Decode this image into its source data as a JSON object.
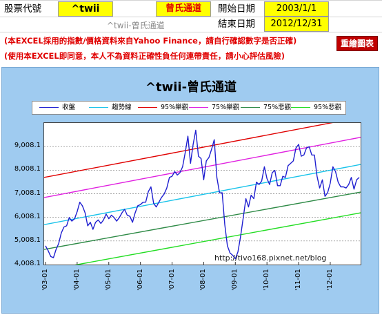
{
  "sheet": {
    "stock_code_label": "股票代號",
    "stock_code_value": "^twii",
    "method_label": "曾氏通道",
    "start_label": "開始日期",
    "start_value": "2003/1/1",
    "end_label": "結束日期",
    "end_value": "2012/12/31",
    "subtitle": "^twii-曾氏通道",
    "disclaimer1": "(本EXCEL採用的指數/價格資料來自Yahoo Finance，請自行確認數字是否正確)",
    "disclaimer2": "(使用本EXCEL即同意，本人不為資料正確性負任何連帶責任，請小心評估風險)",
    "redraw_button": "重繪圖表",
    "colors": {
      "highlight": "#ffff00",
      "chart_bg": "#9fcbf0",
      "accent_red": "#e00000"
    }
  },
  "chart_data": {
    "type": "line",
    "title": "^twii-曾氏通道",
    "watermark": "http://tivo168.pixnet.net/blog",
    "ylim": [
      4008.1,
      10008.1
    ],
    "yticks": [
      "4,008.1",
      "5,008.1",
      "6,008.1",
      "7,008.1",
      "8,008.1",
      "9,008.1"
    ],
    "xticks": [
      "'03-01",
      "'04-01",
      "'05-01",
      "'06-01",
      "'07-01",
      "'08-01",
      "'09-01",
      "'10-01",
      "'11-01",
      "'12-01"
    ],
    "legend": [
      "收盤",
      "趨勢線",
      "95%樂觀",
      "75%樂觀",
      "75%悲觀",
      "95%悲觀"
    ],
    "series_colors": [
      "#1f1fd0",
      "#19c3ea",
      "#e00000",
      "#e020e0",
      "#2e8a46",
      "#22dd22"
    ],
    "bands": [
      {
        "name": "趨勢線",
        "start": 5700,
        "end": 8250
      },
      {
        "name": "95%樂觀",
        "start": 7700,
        "end": 10250
      },
      {
        "name": "75%樂觀",
        "start": 6850,
        "end": 9400
      },
      {
        "name": "75%悲觀",
        "start": 4650,
        "end": 7080
      },
      {
        "name": "95%悲觀",
        "start": 3750,
        "end": 6200
      }
    ],
    "close": [
      [
        "2003-01",
        4800
      ],
      [
        "2003-02",
        4600
      ],
      [
        "2003-03",
        4350
      ],
      [
        "2003-04",
        4300
      ],
      [
        "2003-05",
        4650
      ],
      [
        "2003-06",
        4900
      ],
      [
        "2003-07",
        5350
      ],
      [
        "2003-08",
        5600
      ],
      [
        "2003-09",
        5650
      ],
      [
        "2003-10",
        6000
      ],
      [
        "2003-11",
        5850
      ],
      [
        "2003-12",
        5950
      ],
      [
        "2004-01",
        6250
      ],
      [
        "2004-02",
        6650
      ],
      [
        "2004-03",
        6500
      ],
      [
        "2004-04",
        6200
      ],
      [
        "2004-05",
        5650
      ],
      [
        "2004-06",
        5800
      ],
      [
        "2004-07",
        5500
      ],
      [
        "2004-08",
        5800
      ],
      [
        "2004-09",
        5900
      ],
      [
        "2004-10",
        5750
      ],
      [
        "2004-11",
        5900
      ],
      [
        "2004-12",
        6150
      ],
      [
        "2005-01",
        5950
      ],
      [
        "2005-02",
        6100
      ],
      [
        "2005-03",
        6000
      ],
      [
        "2005-04",
        5850
      ],
      [
        "2005-05",
        6000
      ],
      [
        "2005-06",
        6200
      ],
      [
        "2005-07",
        6350
      ],
      [
        "2005-08",
        6100
      ],
      [
        "2005-09",
        6050
      ],
      [
        "2005-10",
        5800
      ],
      [
        "2005-11",
        6200
      ],
      [
        "2005-12",
        6500
      ],
      [
        "2006-01",
        6550
      ],
      [
        "2006-02",
        6650
      ],
      [
        "2006-03",
        6650
      ],
      [
        "2006-04",
        7100
      ],
      [
        "2006-05",
        7300
      ],
      [
        "2006-06",
        6600
      ],
      [
        "2006-07",
        6450
      ],
      [
        "2006-08",
        6650
      ],
      [
        "2006-09",
        6850
      ],
      [
        "2006-10",
        7000
      ],
      [
        "2006-11",
        7250
      ],
      [
        "2006-12",
        7700
      ],
      [
        "2007-01",
        7750
      ],
      [
        "2007-02",
        7950
      ],
      [
        "2007-03",
        7800
      ],
      [
        "2007-04",
        7900
      ],
      [
        "2007-05",
        8150
      ],
      [
        "2007-06",
        8750
      ],
      [
        "2007-07",
        9450
      ],
      [
        "2007-08",
        8300
      ],
      [
        "2007-09",
        9100
      ],
      [
        "2007-10",
        9700
      ],
      [
        "2007-11",
        8600
      ],
      [
        "2007-12",
        8500
      ],
      [
        "2008-01",
        7600
      ],
      [
        "2008-02",
        8400
      ],
      [
        "2008-03",
        8550
      ],
      [
        "2008-04",
        8900
      ],
      [
        "2008-05",
        9300
      ],
      [
        "2008-06",
        7700
      ],
      [
        "2008-07",
        7050
      ],
      [
        "2008-08",
        7050
      ],
      [
        "2008-09",
        5700
      ],
      [
        "2008-10",
        4800
      ],
      [
        "2008-11",
        4500
      ],
      [
        "2008-12",
        4400
      ],
      [
        "2009-01",
        4250
      ],
      [
        "2009-02",
        4550
      ],
      [
        "2009-03",
        5200
      ],
      [
        "2009-04",
        6000
      ],
      [
        "2009-05",
        6800
      ],
      [
        "2009-06",
        6450
      ],
      [
        "2009-07",
        6950
      ],
      [
        "2009-08",
        6800
      ],
      [
        "2009-09",
        7500
      ],
      [
        "2009-10",
        7400
      ],
      [
        "2009-11",
        7550
      ],
      [
        "2009-12",
        8150
      ],
      [
        "2010-01",
        7650
      ],
      [
        "2010-02",
        7400
      ],
      [
        "2010-03",
        7900
      ],
      [
        "2010-04",
        8000
      ],
      [
        "2010-05",
        7350
      ],
      [
        "2010-06",
        7350
      ],
      [
        "2010-07",
        7750
      ],
      [
        "2010-08",
        7700
      ],
      [
        "2010-09",
        8200
      ],
      [
        "2010-10",
        8300
      ],
      [
        "2010-11",
        8400
      ],
      [
        "2010-12",
        8950
      ],
      [
        "2011-01",
        9100
      ],
      [
        "2011-02",
        8600
      ],
      [
        "2011-03",
        8650
      ],
      [
        "2011-04",
        8950
      ],
      [
        "2011-05",
        9000
      ],
      [
        "2011-06",
        8650
      ],
      [
        "2011-07",
        8650
      ],
      [
        "2011-08",
        7750
      ],
      [
        "2011-09",
        7250
      ],
      [
        "2011-10",
        7600
      ],
      [
        "2011-11",
        6900
      ],
      [
        "2011-12",
        7050
      ],
      [
        "2012-01",
        7450
      ],
      [
        "2012-02",
        8150
      ],
      [
        "2012-03",
        7950
      ],
      [
        "2012-04",
        7500
      ],
      [
        "2012-05",
        7300
      ],
      [
        "2012-06",
        7300
      ],
      [
        "2012-07",
        7250
      ],
      [
        "2012-08",
        7400
      ],
      [
        "2012-09",
        7700
      ],
      [
        "2012-10",
        7200
      ],
      [
        "2012-11",
        7600
      ],
      [
        "2012-12",
        7700
      ]
    ]
  }
}
